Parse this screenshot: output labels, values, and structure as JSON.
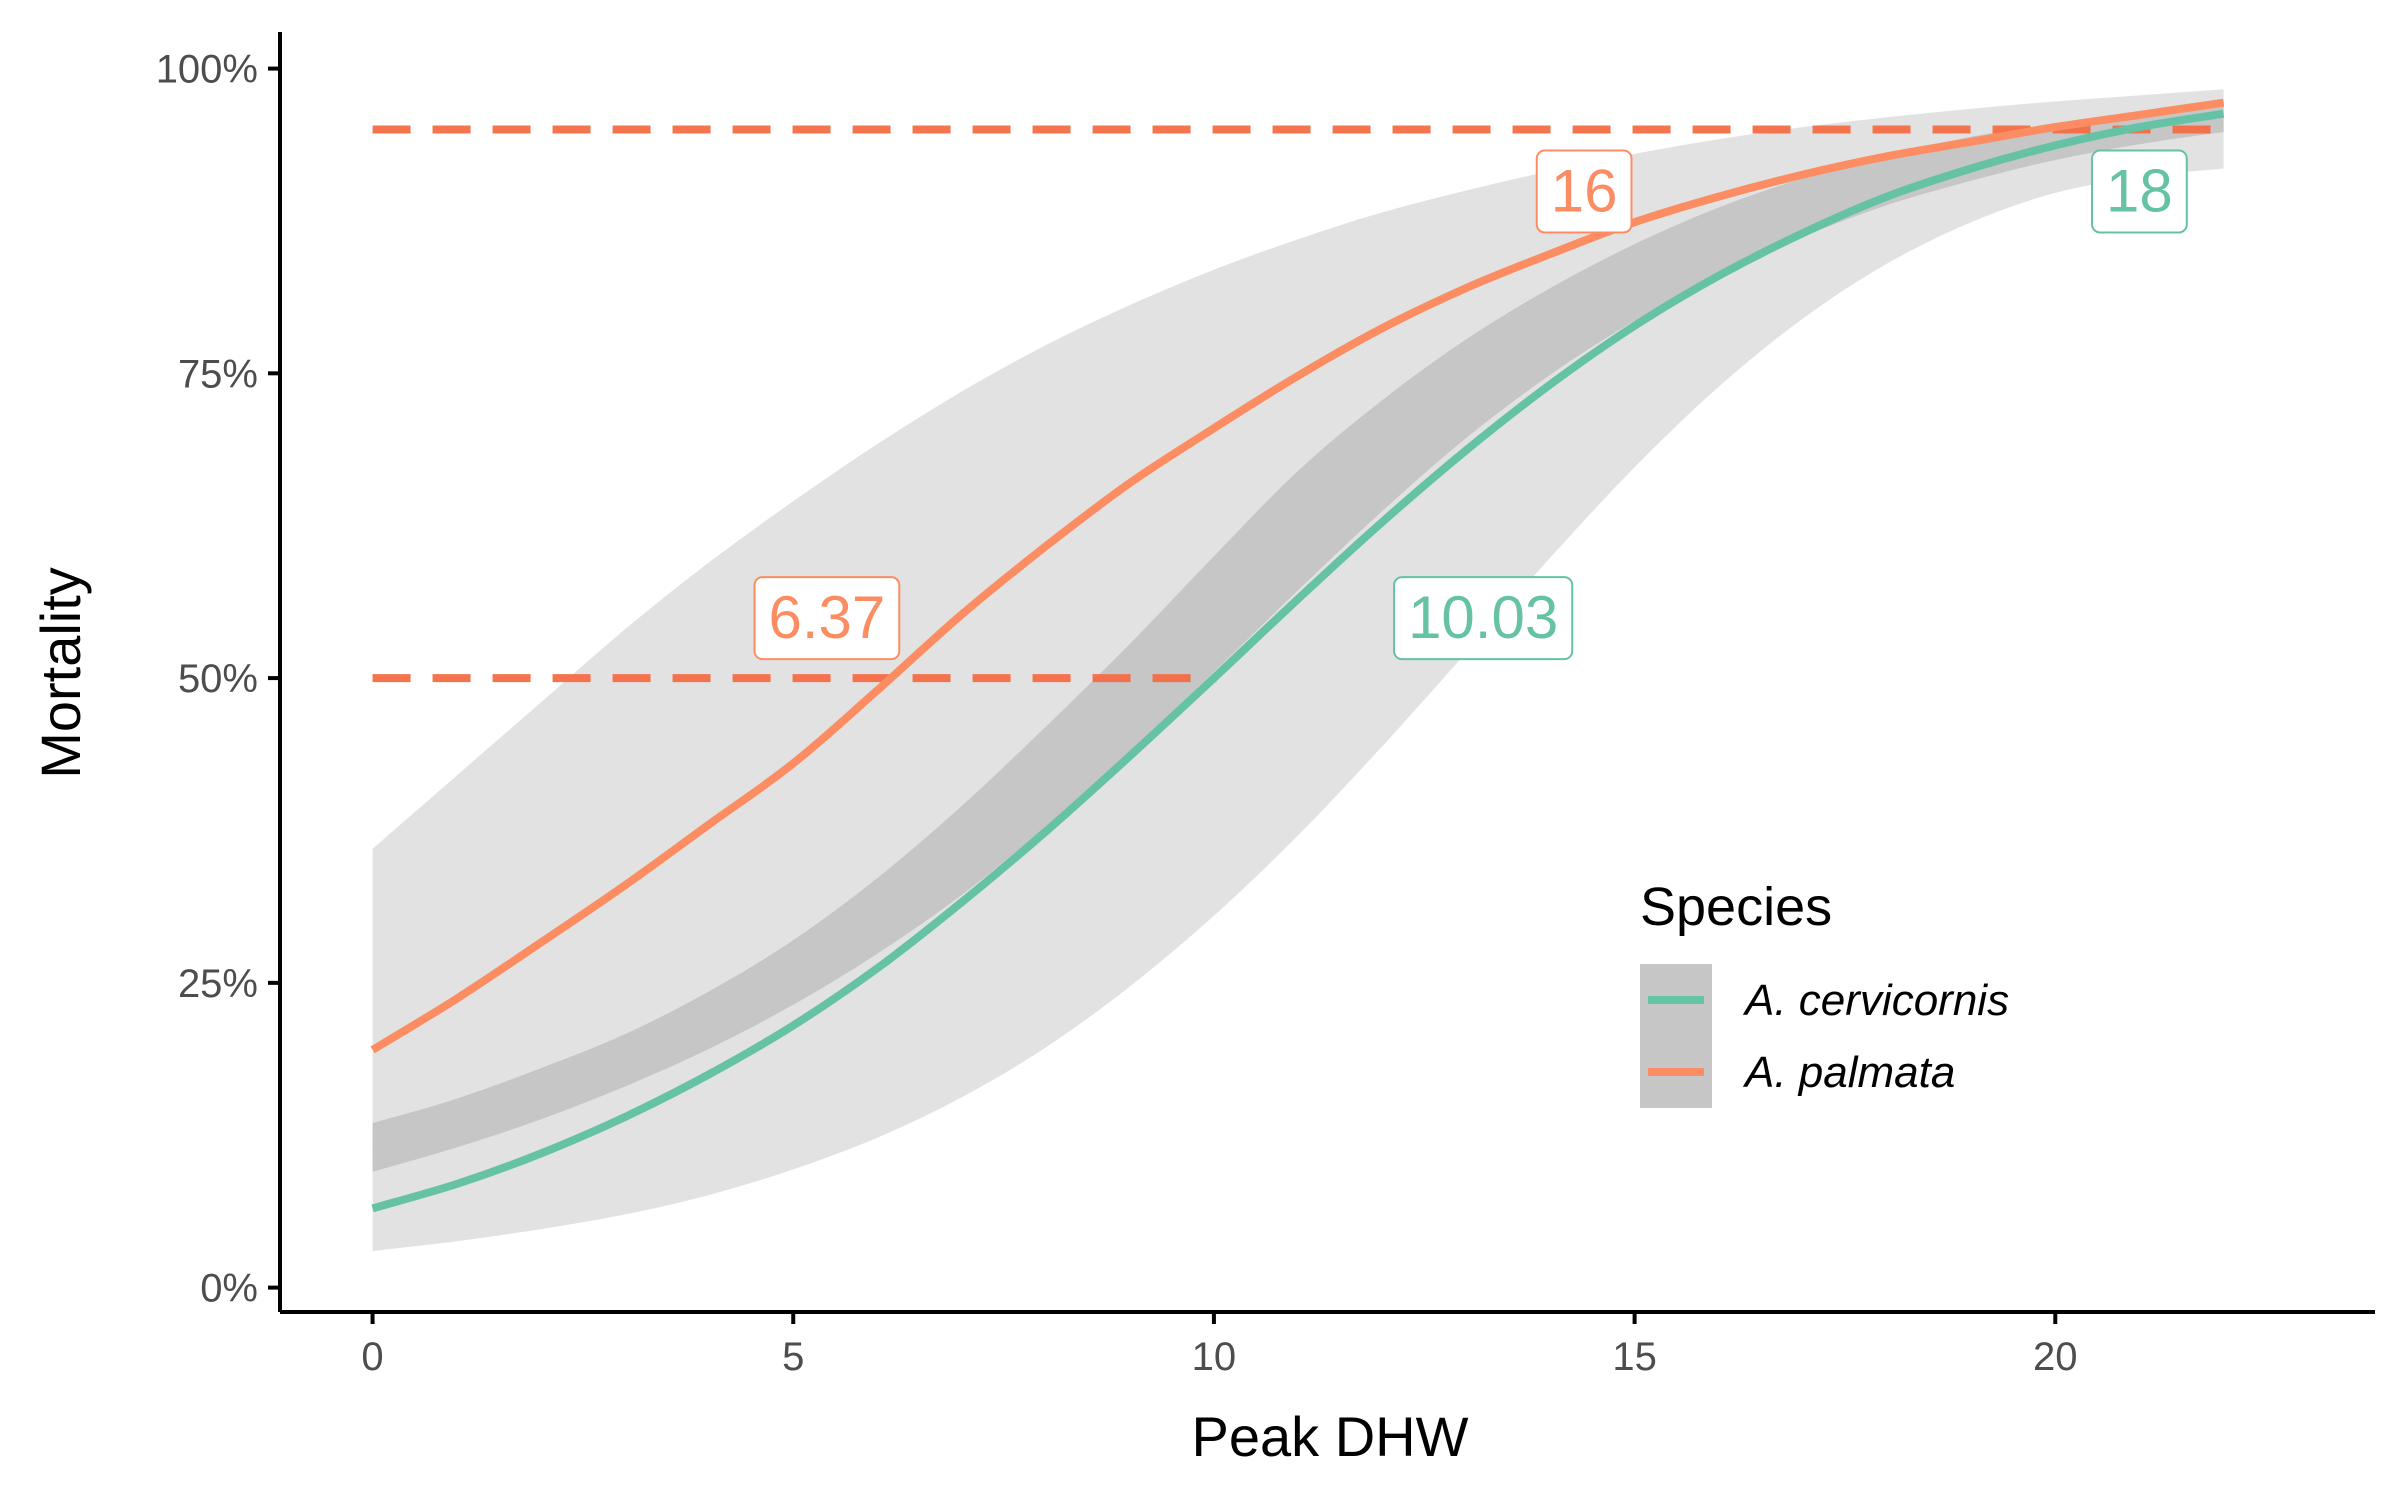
{
  "chart_data": {
    "type": "line",
    "xlabel": "Peak DHW",
    "ylabel": "Mortality",
    "xlim": [
      -1.1,
      23.8
    ],
    "ylim": [
      -0.02,
      1.03
    ],
    "x_ticks": [
      0,
      5,
      10,
      15,
      20
    ],
    "x_tick_labels": [
      "0",
      "5",
      "10",
      "15",
      "20"
    ],
    "y_ticks": [
      0,
      0.25,
      0.5,
      0.75,
      1.0
    ],
    "y_tick_labels": [
      "0%",
      "25%",
      "50%",
      "75%",
      "100%"
    ],
    "grid": false,
    "legend": {
      "title": "Species",
      "position": "right-center"
    },
    "series": [
      {
        "name": "A. cervicornis",
        "color": "#66c2a5",
        "x": [
          0,
          1,
          2,
          3,
          4,
          5,
          6,
          7,
          8,
          9,
          10,
          11,
          12,
          13,
          14,
          15,
          16,
          17,
          18,
          19,
          20,
          21,
          22
        ],
        "y": [
          0.065,
          0.085,
          0.11,
          0.14,
          0.175,
          0.215,
          0.262,
          0.316,
          0.374,
          0.436,
          0.5,
          0.565,
          0.628,
          0.687,
          0.741,
          0.789,
          0.83,
          0.865,
          0.895,
          0.918,
          0.937,
          0.952,
          0.963
        ],
        "ci_lower": [
          0.03,
          0.038,
          0.048,
          0.06,
          0.076,
          0.097,
          0.123,
          0.156,
          0.197,
          0.247,
          0.305,
          0.371,
          0.444,
          0.521,
          0.599,
          0.673,
          0.739,
          0.795,
          0.84,
          0.874,
          0.898,
          0.911,
          0.918
        ],
        "ci_upper": [
          0.135,
          0.155,
          0.18,
          0.208,
          0.243,
          0.285,
          0.336,
          0.395,
          0.46,
          0.528,
          0.6,
          0.67,
          0.728,
          0.778,
          0.82,
          0.856,
          0.886,
          0.91,
          0.929,
          0.944,
          0.955,
          0.965,
          0.973
        ]
      },
      {
        "name": "A. palmata",
        "color": "#fc8d62",
        "x": [
          0,
          1,
          2,
          3,
          4,
          5,
          6,
          7,
          8,
          9,
          10,
          11,
          12,
          13,
          14,
          15,
          16,
          17,
          18,
          19,
          20,
          21,
          22
        ],
        "y": [
          0.195,
          0.237,
          0.283,
          0.33,
          0.38,
          0.43,
          0.49,
          0.552,
          0.608,
          0.66,
          0.705,
          0.748,
          0.787,
          0.82,
          0.848,
          0.874,
          0.895,
          0.913,
          0.928,
          0.94,
          0.952,
          0.962,
          0.972
        ],
        "ci_lower": [
          0.095,
          0.115,
          0.138,
          0.165,
          0.196,
          0.232,
          0.274,
          0.322,
          0.378,
          0.44,
          0.505,
          0.572,
          0.637,
          0.697,
          0.749,
          0.793,
          0.83,
          0.862,
          0.888,
          0.908,
          0.925,
          0.938,
          0.948
        ],
        "ci_upper": [
          0.36,
          0.42,
          0.48,
          0.54,
          0.595,
          0.645,
          0.692,
          0.735,
          0.773,
          0.806,
          0.835,
          0.86,
          0.882,
          0.9,
          0.916,
          0.93,
          0.942,
          0.952,
          0.96,
          0.967,
          0.973,
          0.978,
          0.983
        ]
      }
    ],
    "reference_lines": [
      {
        "y": 0.5,
        "x_start": 0,
        "x_end": 10.03,
        "color": "#f46d43"
      },
      {
        "y": 0.95,
        "x_start": 0,
        "x_end": 22,
        "color": "#f46d43"
      }
    ],
    "annotations": [
      {
        "text": "6.37",
        "x": 5.4,
        "y": 0.55,
        "color": "#fc8d62"
      },
      {
        "text": "10.03",
        "x": 13.2,
        "y": 0.55,
        "color": "#66c2a5"
      },
      {
        "text": "16",
        "x": 14.4,
        "y": 0.9,
        "color": "#fc8d62"
      },
      {
        "text": "18",
        "x": 21.0,
        "y": 0.9,
        "color": "#66c2a5"
      }
    ],
    "ribbon_colors": {
      "light": "#e2e2e2",
      "overlap": "#c6c6c6"
    }
  }
}
